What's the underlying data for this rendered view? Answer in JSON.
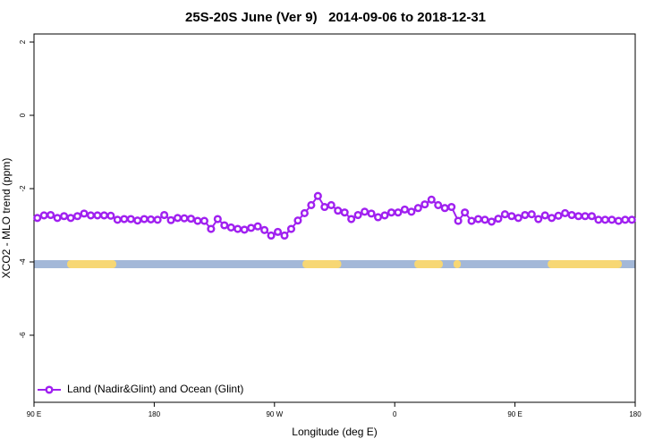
{
  "chart_data": {
    "type": "line",
    "title": "25S-20S June (Ver 9)   2014-09-06 to 2018-12-31",
    "x_label": "Longitude (deg E)",
    "y_label": "XCO2 - MLO trend (ppm)",
    "xlim": [
      90,
      540
    ],
    "xticks": [
      {
        "value": 90,
        "label": "90 E"
      },
      {
        "value": 180,
        "label": "180"
      },
      {
        "value": 270,
        "label": "90 W"
      },
      {
        "value": 360,
        "label": "0"
      },
      {
        "value": 450,
        "label": "90 E"
      },
      {
        "value": 540,
        "label": "180"
      }
    ],
    "ylim": [
      -7.83,
      2.22
    ],
    "yticks": [
      2,
      0,
      -2,
      -4,
      -6
    ],
    "legend_position": "bottom-left",
    "land_ranges": [
      [
        114.8,
        151.6
      ],
      [
        291,
        320
      ],
      [
        374.7,
        396
      ],
      [
        404,
        409.5
      ],
      [
        474.5,
        530
      ]
    ],
    "land_color": "#f7d774",
    "ocean_color": "#a3b8d8",
    "series": [
      {
        "name": "Land (Nadir&Glint) and Ocean (Glint)",
        "color": "#a020f0",
        "x": [
          92.5,
          97.5,
          102.5,
          107.5,
          112.5,
          117.5,
          122.5,
          127.5,
          132.5,
          137.5,
          142.5,
          147.5,
          152.5,
          157.5,
          162.5,
          167.5,
          172.5,
          177.5,
          182.5,
          187.5,
          192.5,
          197.5,
          202.5,
          207.5,
          212.5,
          217.5,
          222.5,
          227.5,
          232.5,
          237.5,
          242.5,
          247.5,
          252.5,
          257.5,
          262.5,
          267.5,
          272.5,
          277.5,
          282.5,
          287.5,
          292.5,
          297.5,
          302.5,
          307.5,
          312.5,
          317.5,
          322.5,
          327.5,
          332.5,
          337.5,
          342.5,
          347.5,
          352.5,
          357.5,
          362.5,
          367.5,
          372.5,
          377.5,
          382.5,
          387.5,
          392.5,
          397.5,
          402.5,
          407.5,
          412.5,
          417.5,
          422.5,
          427.5,
          432.5,
          437.5,
          442.5,
          447.5,
          452.5,
          457.5,
          462.5,
          467.5,
          472.5,
          477.5,
          482.5,
          487.5,
          492.5,
          497.5,
          502.5,
          507.5,
          512.5,
          517.5,
          522.5,
          527.5,
          532.5,
          537.5
        ],
        "values": [
          -2.8,
          -2.73,
          -2.72,
          -2.8,
          -2.75,
          -2.8,
          -2.75,
          -2.68,
          -2.73,
          -2.73,
          -2.73,
          -2.74,
          -2.85,
          -2.83,
          -2.83,
          -2.87,
          -2.83,
          -2.84,
          -2.85,
          -2.72,
          -2.86,
          -2.8,
          -2.81,
          -2.82,
          -2.88,
          -2.88,
          -3.1,
          -2.83,
          -3.0,
          -3.06,
          -3.1,
          -3.12,
          -3.07,
          -3.03,
          -3.13,
          -3.28,
          -3.18,
          -3.28,
          -3.1,
          -2.87,
          -2.67,
          -2.45,
          -2.2,
          -2.5,
          -2.45,
          -2.6,
          -2.65,
          -2.83,
          -2.72,
          -2.63,
          -2.68,
          -2.78,
          -2.73,
          -2.65,
          -2.65,
          -2.57,
          -2.63,
          -2.53,
          -2.43,
          -2.3,
          -2.45,
          -2.53,
          -2.5,
          -2.88,
          -2.65,
          -2.88,
          -2.83,
          -2.85,
          -2.9,
          -2.82,
          -2.7,
          -2.75,
          -2.8,
          -2.72,
          -2.7,
          -2.83,
          -2.73,
          -2.8,
          -2.74,
          -2.67,
          -2.72,
          -2.75,
          -2.75,
          -2.75,
          -2.85,
          -2.85,
          -2.85,
          -2.88,
          -2.85,
          -2.85
        ]
      }
    ]
  }
}
